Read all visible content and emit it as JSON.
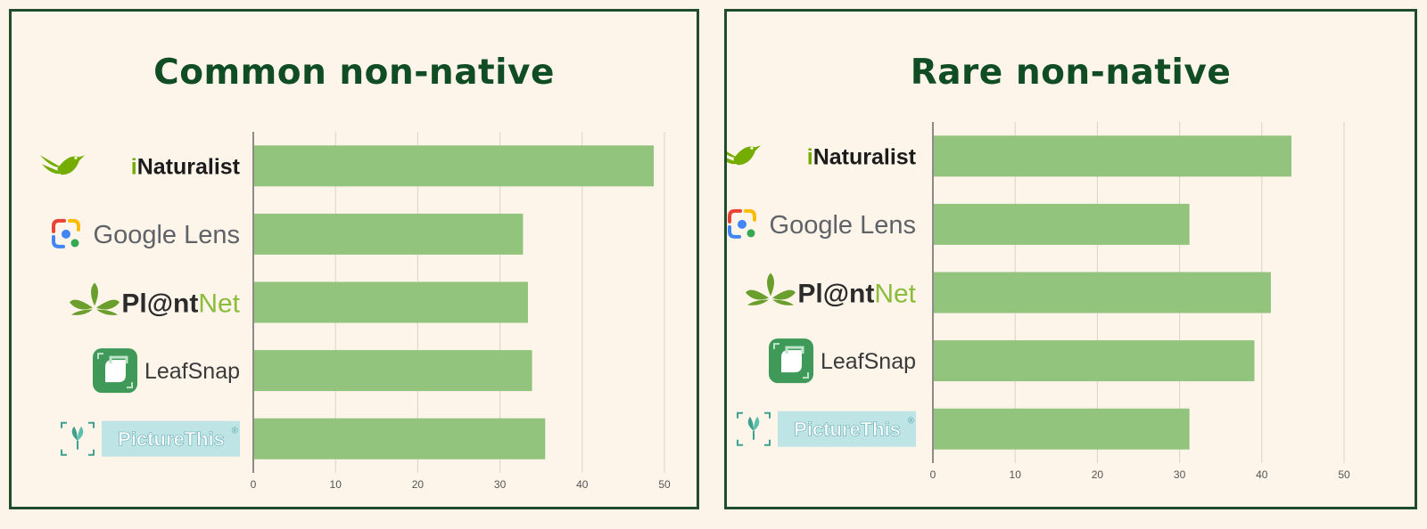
{
  "page": {
    "background": "#fdf4e9",
    "border_color": "#1f4d2b",
    "title_color": "#114d24",
    "bar_color": "#93c47d"
  },
  "chart_data": [
    {
      "type": "bar",
      "orientation": "horizontal",
      "title": "Common non-native",
      "categories": [
        "iNaturalist",
        "Google Lens",
        "Pl@ntNet",
        "LeafSnap",
        "PictureThis"
      ],
      "values": [
        48.7,
        32.8,
        33.4,
        33.9,
        35.5
      ],
      "xlim": [
        0,
        50
      ],
      "xticks": [
        "0",
        "10",
        "20",
        "30",
        "40",
        "50"
      ],
      "grid": true,
      "category_icons": [
        "inaturalist-logo",
        "google-lens-logo",
        "plantnet-logo",
        "leafsnap-logo",
        "picturethis-logo"
      ]
    },
    {
      "type": "bar",
      "orientation": "horizontal",
      "title": "Rare non-native",
      "categories": [
        "iNaturalist",
        "Google Lens",
        "Pl@ntNet",
        "LeafSnap",
        "PictureThis"
      ],
      "values": [
        43.6,
        31.2,
        41.1,
        39.1,
        31.2
      ],
      "xlim": [
        0,
        50
      ],
      "xticks": [
        "0",
        "10",
        "20",
        "30",
        "40",
        "50"
      ],
      "grid": true,
      "category_icons": [
        "inaturalist-logo",
        "google-lens-logo",
        "plantnet-logo",
        "leafsnap-logo",
        "picturethis-logo"
      ]
    }
  ],
  "logos": {
    "inaturalist": {
      "prefix": "i",
      "rest": "Naturalist"
    },
    "google_lens": {
      "word1": "Google",
      "word2": "Lens"
    },
    "plantnet": {
      "part1": "Pl@nt",
      "part2": "Net"
    },
    "leafsnap": {
      "label": "LeafSnap"
    },
    "picturethis": {
      "label": "PictureThis",
      "mark": "®"
    }
  }
}
